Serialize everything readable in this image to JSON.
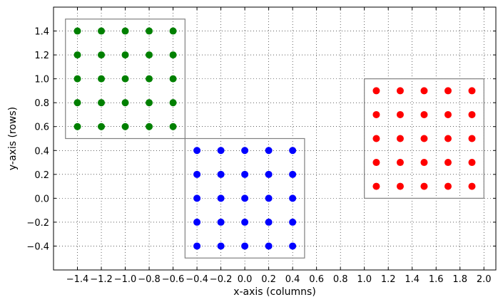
{
  "chart_data": {
    "type": "scatter",
    "title": "",
    "xlabel": "x-axis (columns)",
    "ylabel": "y-axis (rows)",
    "xlim": [
      -1.6,
      2.1
    ],
    "ylim": [
      -0.6,
      1.6
    ],
    "grid": true,
    "grid_style": "dotted",
    "x_ticks": [
      -1.4,
      -1.2,
      -1.0,
      -0.8,
      -0.6,
      -0.4,
      -0.2,
      0.0,
      0.2,
      0.4,
      0.6,
      0.8,
      1.0,
      1.2,
      1.4,
      1.6,
      1.8,
      2.0
    ],
    "x_tick_labels": [
      "−1.4",
      "−1.2",
      "−1.0",
      "−0.8",
      "−0.6",
      "−0.4",
      "−0.2",
      "0.0",
      "0.2",
      "0.4",
      "0.6",
      "0.8",
      "1.0",
      "1.2",
      "1.4",
      "1.6",
      "1.8",
      "2.0"
    ],
    "y_ticks": [
      -0.4,
      -0.2,
      0.0,
      0.2,
      0.4,
      0.6,
      0.8,
      1.0,
      1.2,
      1.4
    ],
    "y_tick_labels": [
      "−0.4",
      "−0.2",
      "0.0",
      "0.2",
      "0.4",
      "0.6",
      "0.8",
      "1.0",
      "1.2",
      "1.4"
    ],
    "series": [
      {
        "color": "#008000",
        "x": [
          -1.4,
          -1.2,
          -1.0,
          -0.8,
          -0.6
        ],
        "y": [
          0.6,
          0.8,
          1.0,
          1.2,
          1.4
        ],
        "grid_points": true,
        "box": [
          -1.5,
          0.5,
          -0.5,
          1.5
        ]
      },
      {
        "color": "#0000ff",
        "x": [
          -0.4,
          -0.2,
          0.0,
          0.2,
          0.4
        ],
        "y": [
          -0.4,
          -0.2,
          0.0,
          0.2,
          0.4
        ],
        "grid_points": true,
        "box": [
          -0.5,
          -0.5,
          0.5,
          0.5
        ]
      },
      {
        "color": "#ff0000",
        "x": [
          1.1,
          1.3,
          1.5,
          1.7,
          1.9
        ],
        "y": [
          0.1,
          0.3,
          0.5,
          0.7,
          0.9
        ],
        "grid_points": true,
        "box": [
          1.0,
          0.0,
          2.0,
          1.0
        ]
      }
    ],
    "box_color": "#808080"
  }
}
